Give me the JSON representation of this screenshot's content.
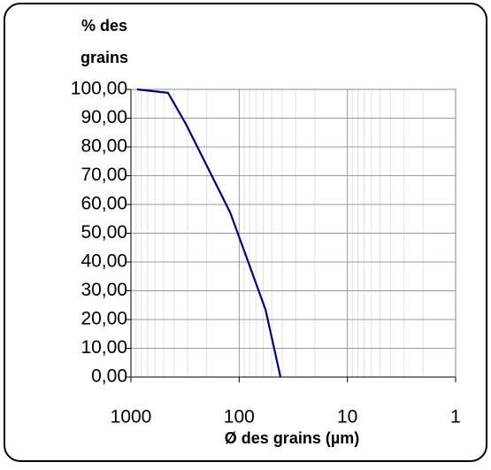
{
  "chart_data": {
    "type": "line",
    "y_label": [
      "% des",
      "grains"
    ],
    "x_label": "Ø des grains (µm)",
    "xscale": "log",
    "xlim": [
      1000,
      1
    ],
    "xticks": [
      1000,
      100,
      10,
      1
    ],
    "x_minor_grid": [
      900,
      800,
      700,
      600,
      500,
      400,
      300,
      200,
      90,
      80,
      70,
      60,
      50,
      40,
      30,
      20,
      9,
      8,
      7,
      6,
      5,
      4,
      3,
      2
    ],
    "ylim": [
      0,
      100
    ],
    "yticks": [
      {
        "value": 0,
        "label": "0,00"
      },
      {
        "value": 10,
        "label": "10,00"
      },
      {
        "value": 20,
        "label": "20,00"
      },
      {
        "value": 30,
        "label": "30,00"
      },
      {
        "value": 40,
        "label": "40,00"
      },
      {
        "value": 50,
        "label": "50,00"
      },
      {
        "value": 60,
        "label": "60,00"
      },
      {
        "value": 70,
        "label": "70,00"
      },
      {
        "value": 80,
        "label": "80,00"
      },
      {
        "value": 90,
        "label": "90,00"
      },
      {
        "value": 100,
        "label": "100,00"
      }
    ],
    "grid": true,
    "series": [
      {
        "color": "#000080",
        "x": [
          877,
          454,
          311,
          194,
          121,
          83,
          57,
          41.5
        ],
        "values": [
          100,
          98.8,
          88,
          72.6,
          57.2,
          40.3,
          23.4,
          0
        ]
      }
    ]
  }
}
